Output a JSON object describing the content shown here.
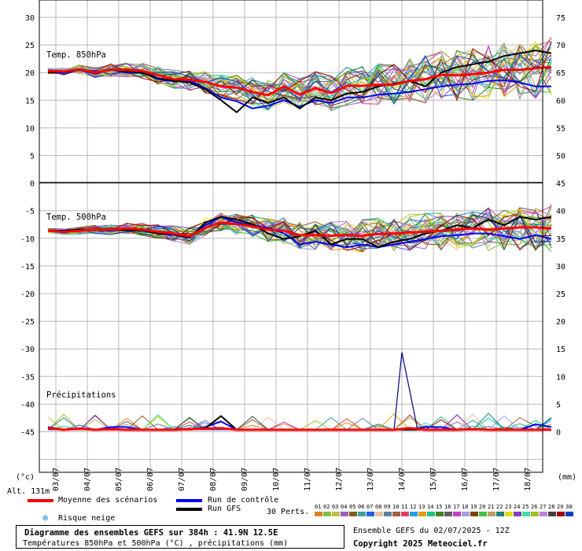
{
  "chart_data": {
    "type": "line",
    "title": "Diagramme des ensembles GEFS sur 384h : 41.9N 12.5E",
    "subtitle": "Températures 850hPa et 500hPa (°C) , précipitations (mm)",
    "x_ticks": [
      "03/07",
      "04/07",
      "05/07",
      "06/07",
      "07/07",
      "08/07",
      "09/07",
      "10/07",
      "11/07",
      "12/07",
      "13/07",
      "14/07",
      "15/07",
      "16/07",
      "17/07",
      "18/07"
    ],
    "left_ticks": [
      "30",
      "25",
      "20",
      "15",
      "10",
      "5",
      "0",
      "-5",
      "-10",
      "-15",
      "-20",
      "-25",
      "-30",
      "-35",
      "-40",
      "-45"
    ],
    "right_ticks": [
      "75",
      "70",
      "65",
      "60",
      "55",
      "50",
      "45",
      "40",
      "35",
      "30",
      "25",
      "20",
      "15",
      "10",
      "5",
      "0"
    ],
    "left_unit": "(°c)",
    "right_unit": "(mm)",
    "altitude": "Alt. 131m",
    "panel_labels": {
      "t850": "Temp. 850hPa",
      "t500": "Temp. 500hPa",
      "precip": "Précipitations"
    },
    "x_values_days": [
      0,
      0.5,
      1,
      1.5,
      2,
      2.5,
      3,
      3.5,
      4,
      4.5,
      5,
      5.5,
      6,
      6.5,
      7,
      7.5,
      8,
      8.5,
      9,
      9.5,
      10,
      10.5,
      11,
      11.5,
      12,
      12.5,
      13,
      13.5,
      14,
      14.5,
      15,
      15.5,
      16
    ],
    "series": [
      {
        "name": "Moyenne des scénarios",
        "color": "#ff0000",
        "panel": "t850",
        "values": [
          20.3,
          20.2,
          20.6,
          20.0,
          20.5,
          20.5,
          20.3,
          19.5,
          18.8,
          18.7,
          18.3,
          17.5,
          17.3,
          16.5,
          15.9,
          17.5,
          16.0,
          17.2,
          16.3,
          17.6,
          17.6,
          17.8,
          17.8,
          18.5,
          18.8,
          19.6,
          19.5,
          19.7,
          20.0,
          20.5,
          20.5,
          20.8,
          21.0
        ]
      },
      {
        "name": "Run de contrôle",
        "color": "#0000ff",
        "panel": "t850",
        "values": [
          20.2,
          20.0,
          20.5,
          19.8,
          20.5,
          20.0,
          20.0,
          18.8,
          18.4,
          18.5,
          17.2,
          15.5,
          14.8,
          13.5,
          14.0,
          15.0,
          13.8,
          15.0,
          14.5,
          15.5,
          15.5,
          16.0,
          16.2,
          16.5,
          17.0,
          17.5,
          17.8,
          18.0,
          18.5,
          18.6,
          18.2,
          17.5,
          17.5
        ]
      },
      {
        "name": "Run GFS",
        "color": "#000000",
        "panel": "t850",
        "values": [
          20.0,
          20.2,
          20.5,
          19.9,
          20.5,
          20.2,
          20.0,
          19.0,
          18.5,
          18.2,
          17.0,
          15.0,
          12.8,
          15.5,
          14.5,
          15.5,
          13.5,
          15.5,
          15.0,
          16.2,
          16.5,
          17.5,
          18.0,
          18.5,
          17.5,
          20.0,
          21.0,
          21.5,
          22.0,
          23.0,
          23.5,
          24.0,
          23.5
        ]
      },
      {
        "name": "Moyenne des scénarios",
        "color": "#ff0000",
        "panel": "t500",
        "values": [
          -9.0,
          -9.2,
          -9.0,
          -8.8,
          -8.8,
          -8.6,
          -8.8,
          -9.2,
          -9.5,
          -10.0,
          -8.5,
          -7.5,
          -7.8,
          -8.2,
          -8.8,
          -9.0,
          -9.8,
          -9.8,
          -9.9,
          -9.8,
          -9.9,
          -9.6,
          -9.5,
          -9.3,
          -9.2,
          -9.0,
          -8.8,
          -8.6,
          -8.8,
          -8.6,
          -8.4,
          -8.4,
          -8.6
        ]
      },
      {
        "name": "Run de contrôle",
        "color": "#0000ff",
        "panel": "t500",
        "values": [
          -9.0,
          -9.0,
          -8.8,
          -8.9,
          -9.0,
          -8.8,
          -9.0,
          -9.5,
          -9.8,
          -10.2,
          -8.0,
          -6.5,
          -7.5,
          -8.0,
          -8.5,
          -9.5,
          -11.5,
          -11.0,
          -11.5,
          -12.0,
          -11.5,
          -12.0,
          -11.5,
          -11.0,
          -10.5,
          -10.0,
          -9.8,
          -9.5,
          -9.5,
          -10.0,
          -10.5,
          -9.8,
          -10.5
        ]
      },
      {
        "name": "Run GFS",
        "color": "#000000",
        "panel": "t500",
        "values": [
          -9.0,
          -9.0,
          -8.8,
          -8.9,
          -8.8,
          -8.9,
          -9.0,
          -9.5,
          -9.6,
          -10.3,
          -7.5,
          -6.5,
          -7.0,
          -7.8,
          -9.5,
          -10.5,
          -10.0,
          -9.0,
          -11.5,
          -10.5,
          -10.5,
          -12.0,
          -11.0,
          -10.5,
          -9.5,
          -9.0,
          -8.0,
          -8.5,
          -7.0,
          -8.0,
          -6.5,
          -7.0,
          -6.5
        ]
      },
      {
        "name": "Moyenne des scénarios",
        "color": "#ff0000",
        "panel": "precip",
        "values": [
          0.3,
          0.0,
          0.2,
          0.0,
          0.1,
          0.0,
          0.0,
          0.0,
          0.0,
          0.1,
          0.2,
          0.3,
          0.0,
          0.0,
          0.0,
          0.0,
          0.0,
          0.0,
          0.0,
          0.0,
          0.0,
          0.0,
          0.0,
          0.3,
          0.0,
          0.0,
          0.0,
          0.1,
          0.0,
          0.0,
          0.0,
          0.0,
          0.0
        ]
      },
      {
        "name": "Run de contrôle",
        "color": "#0000ff",
        "panel": "precip",
        "values": [
          0.5,
          0.0,
          0.3,
          0.0,
          0.5,
          0.5,
          0.0,
          0.0,
          0.0,
          0.0,
          0.5,
          1.5,
          0.0,
          0.0,
          0.0,
          0.0,
          0.0,
          0.0,
          0.0,
          0.0,
          0.0,
          0.0,
          0.0,
          0.0,
          0.5,
          0.5,
          0.0,
          0.0,
          0.0,
          0.0,
          0.0,
          1.0,
          0.5
        ]
      },
      {
        "name": "Run GFS",
        "color": "#000000",
        "panel": "precip",
        "values": [
          0.3,
          0.0,
          0.1,
          0.0,
          0.0,
          0.0,
          0.0,
          0.0,
          0.0,
          0.0,
          0.3,
          2.5,
          0.0,
          0.0,
          0.0,
          0.0,
          0.0,
          0.0,
          0.0,
          0.0,
          0.0,
          0.0,
          0.0,
          0.0,
          0.0,
          0.0,
          0.0,
          0.0,
          0.0,
          0.0,
          0.0,
          0.0,
          0.0
        ]
      }
    ],
    "precip_peak": {
      "x": 11.25,
      "value": 14,
      "color": "#000080"
    },
    "grid": true
  },
  "legend": {
    "mean": "Moyenne des scénarios",
    "control": "Run de contrôle",
    "gfs": "Run GFS",
    "snow": "Risque neige",
    "perts": "30 Perts.",
    "pert_numbers": [
      "01",
      "02",
      "03",
      "04",
      "05",
      "06",
      "07",
      "08",
      "09",
      "10",
      "11",
      "12",
      "13",
      "14",
      "15",
      "16",
      "17",
      "18",
      "19",
      "20",
      "21",
      "22",
      "23",
      "24",
      "25",
      "26",
      "27",
      "28",
      "29",
      "30"
    ],
    "pert_colors": [
      "#e08020",
      "#80c040",
      "#c0c040",
      "#a060c0",
      "#806020",
      "#40a0a0",
      "#2060e0",
      "#e0c0a0",
      "#6080a0",
      "#a06040",
      "#e04060",
      "#20a0e0",
      "#e0a000",
      "#20c080",
      "#408020",
      "#606060",
      "#c040c0",
      "#a0a0e0",
      "#804000",
      "#40c040",
      "#c0a060",
      "#208080",
      "#e0e000",
      "#8040c0",
      "#40e0a0",
      "#a0c020",
      "#c080e0",
      "#404040",
      "#a00000",
      "#0040c0"
    ]
  },
  "footer": {
    "ensemble": "Ensemble GEFS du 02/07/2025 - 12Z",
    "copyright": "Copyright 2025 Meteociel.fr"
  }
}
